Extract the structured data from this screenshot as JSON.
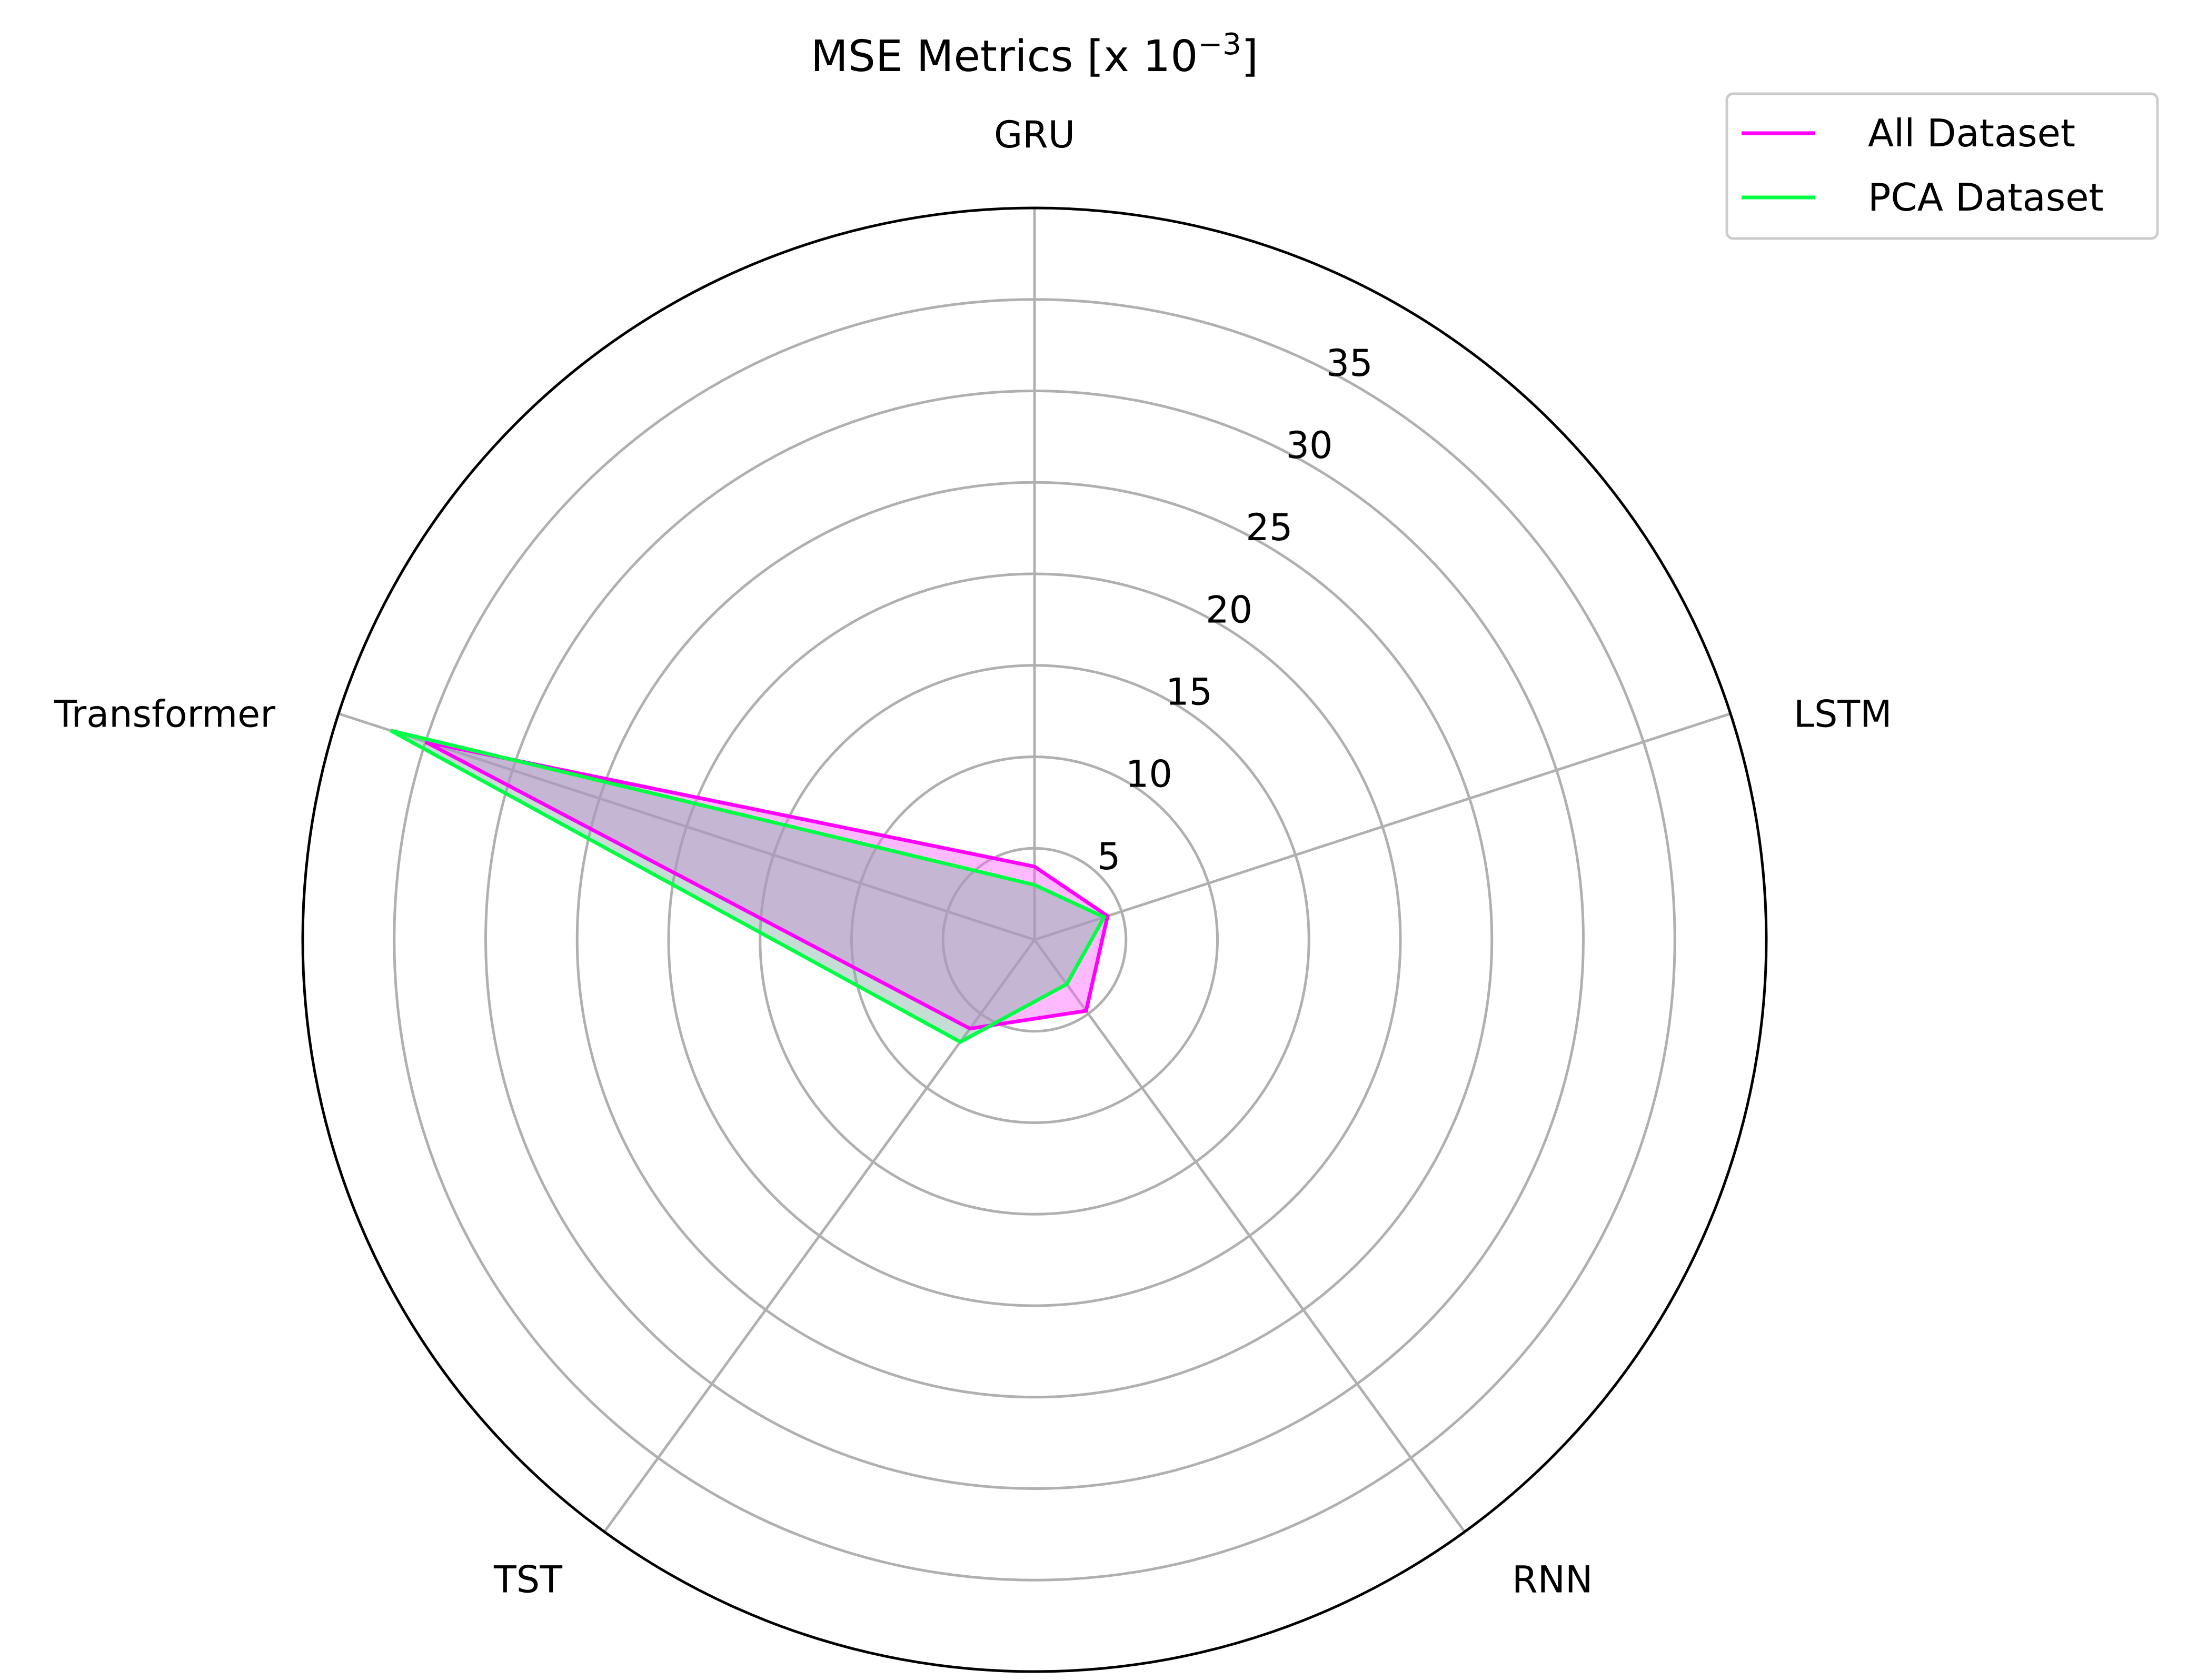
{
  "chart_data": {
    "type": "radar",
    "title": {
      "main": "MSE Metrics  [x 10",
      "superscript": "−3",
      "close": "]"
    },
    "categories": [
      "GRU",
      "LSTM",
      "RNN",
      "TST",
      "Transformer"
    ],
    "rticks": [
      5,
      10,
      15,
      20,
      25,
      30,
      35
    ],
    "rmax": 40,
    "grid": true,
    "legend_position": "top-right",
    "series": [
      {
        "name": "All Dataset",
        "color": "#ff00ff",
        "values": [
          4.0,
          4.2,
          4.8,
          6.0,
          35.0
        ]
      },
      {
        "name": "PCA Dataset",
        "color": "#00ff44",
        "values": [
          3.0,
          4.0,
          3.0,
          6.9,
          37.0
        ]
      }
    ],
    "colors": {
      "grid": "#b0b0b0",
      "frame": "#000000",
      "fill_all": "#ff66ff",
      "fill_pca": "#7fb39f"
    }
  }
}
